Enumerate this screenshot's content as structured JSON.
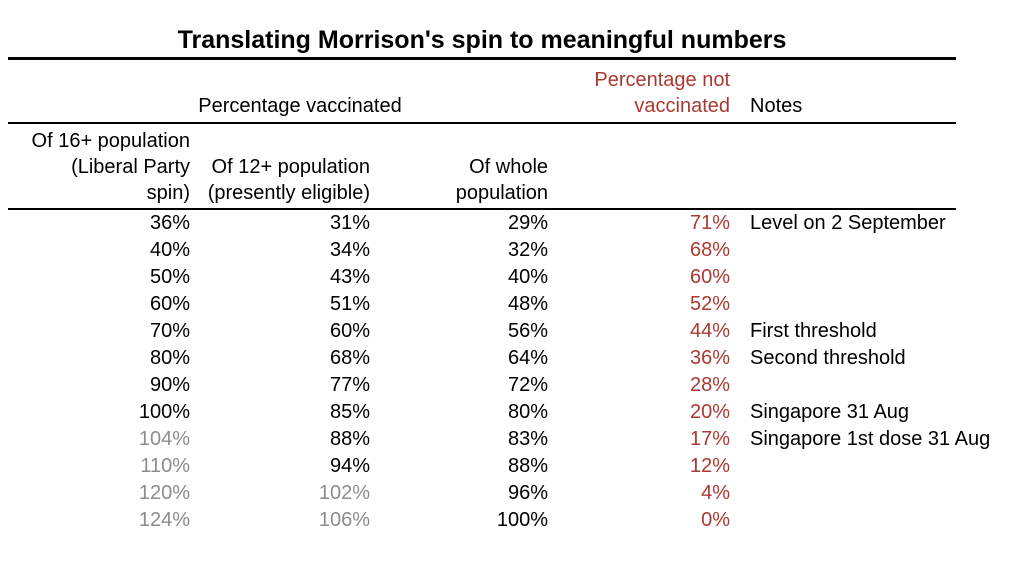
{
  "title": "Translating Morrison's spin to meaningful numbers",
  "colors": {
    "background": "#ffffff",
    "text": "#000000",
    "not_vaccinated": "#a93a32",
    "muted": "#8c8c8c"
  },
  "header": {
    "vaccinated_group": "Percentage vaccinated",
    "not_vaccinated_lines": [
      "Percentage not",
      "vaccinated"
    ],
    "notes": "Notes"
  },
  "subheader": {
    "of_16plus_lines": [
      "Of 16+ population",
      "(Liberal Party",
      "spin)"
    ],
    "of_12plus_lines": [
      "Of 12+ population",
      "(presently eligible)"
    ],
    "of_whole_lines": [
      "Of whole",
      "population"
    ]
  },
  "table": {
    "rows": [
      {
        "of_16plus": "36%",
        "of_16plus_muted": false,
        "of_12plus": "31%",
        "of_12plus_muted": false,
        "of_whole": "29%",
        "not_vaccinated": "71%",
        "note": "Level on 2 September"
      },
      {
        "of_16plus": "40%",
        "of_16plus_muted": false,
        "of_12plus": "34%",
        "of_12plus_muted": false,
        "of_whole": "32%",
        "not_vaccinated": "68%",
        "note": ""
      },
      {
        "of_16plus": "50%",
        "of_16plus_muted": false,
        "of_12plus": "43%",
        "of_12plus_muted": false,
        "of_whole": "40%",
        "not_vaccinated": "60%",
        "note": ""
      },
      {
        "of_16plus": "60%",
        "of_16plus_muted": false,
        "of_12plus": "51%",
        "of_12plus_muted": false,
        "of_whole": "48%",
        "not_vaccinated": "52%",
        "note": ""
      },
      {
        "of_16plus": "70%",
        "of_16plus_muted": false,
        "of_12plus": "60%",
        "of_12plus_muted": false,
        "of_whole": "56%",
        "not_vaccinated": "44%",
        "note": "First threshold"
      },
      {
        "of_16plus": "80%",
        "of_16plus_muted": false,
        "of_12plus": "68%",
        "of_12plus_muted": false,
        "of_whole": "64%",
        "not_vaccinated": "36%",
        "note": "Second threshold"
      },
      {
        "of_16plus": "90%",
        "of_16plus_muted": false,
        "of_12plus": "77%",
        "of_12plus_muted": false,
        "of_whole": "72%",
        "not_vaccinated": "28%",
        "note": ""
      },
      {
        "of_16plus": "100%",
        "of_16plus_muted": false,
        "of_12plus": "85%",
        "of_12plus_muted": false,
        "of_whole": "80%",
        "not_vaccinated": "20%",
        "note": "Singapore 31 Aug"
      },
      {
        "of_16plus": "104%",
        "of_16plus_muted": true,
        "of_12plus": "88%",
        "of_12plus_muted": false,
        "of_whole": "83%",
        "not_vaccinated": "17%",
        "note": "Singapore 1st dose 31 Aug"
      },
      {
        "of_16plus": "110%",
        "of_16plus_muted": true,
        "of_12plus": "94%",
        "of_12plus_muted": false,
        "of_whole": "88%",
        "not_vaccinated": "12%",
        "note": ""
      },
      {
        "of_16plus": "120%",
        "of_16plus_muted": true,
        "of_12plus": "102%",
        "of_12plus_muted": true,
        "of_whole": "96%",
        "not_vaccinated": "4%",
        "note": ""
      },
      {
        "of_16plus": "124%",
        "of_16plus_muted": true,
        "of_12plus": "106%",
        "of_12plus_muted": true,
        "of_whole": "100%",
        "not_vaccinated": "0%",
        "note": ""
      }
    ]
  },
  "chart_data": {
    "type": "table",
    "title": "Translating Morrison's spin to meaningful numbers",
    "column_group": "Percentage vaccinated",
    "columns": [
      "Of 16+ population (Liberal Party spin)",
      "Of 12+ population (presently eligible)",
      "Of whole population",
      "Percentage not vaccinated",
      "Notes"
    ],
    "rows": [
      [
        36,
        31,
        29,
        71,
        "Level on 2 September"
      ],
      [
        40,
        34,
        32,
        68,
        ""
      ],
      [
        50,
        43,
        40,
        60,
        ""
      ],
      [
        60,
        51,
        48,
        52,
        ""
      ],
      [
        70,
        60,
        56,
        44,
        "First threshold"
      ],
      [
        80,
        68,
        64,
        36,
        "Second threshold"
      ],
      [
        90,
        77,
        72,
        28,
        ""
      ],
      [
        100,
        85,
        80,
        20,
        "Singapore 31 Aug"
      ],
      [
        104,
        88,
        83,
        17,
        "Singapore 1st dose 31 Aug"
      ],
      [
        110,
        94,
        88,
        12,
        ""
      ],
      [
        120,
        102,
        96,
        4,
        ""
      ],
      [
        124,
        106,
        100,
        0,
        ""
      ]
    ],
    "units": "percent"
  }
}
